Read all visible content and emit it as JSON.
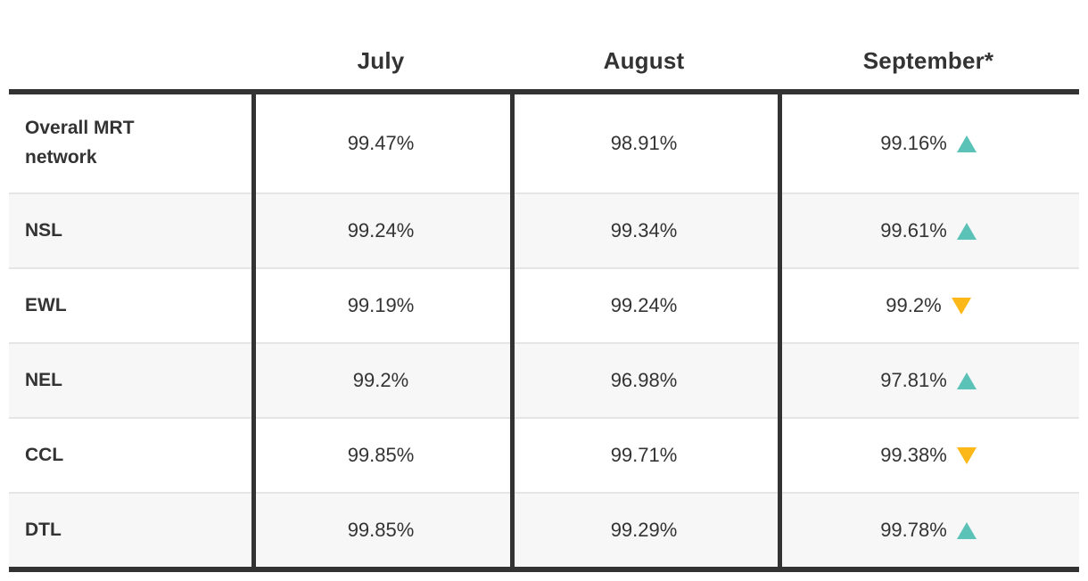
{
  "colors": {
    "text": "#333333",
    "rule": "#333333",
    "row_alt_background": "#f7f7f7",
    "row_divider": "#e5e5e5",
    "trend_up": "#5BC2B8",
    "trend_down": "#FBB818"
  },
  "table": {
    "column_headers": [
      "July",
      "August",
      "September*"
    ],
    "rows": [
      {
        "label": "Overall MRT network",
        "july": "99.47%",
        "august": "98.91%",
        "september": "99.16%",
        "trend": "up"
      },
      {
        "label": "NSL",
        "july": "99.24%",
        "august": "99.34%",
        "september": "99.61%",
        "trend": "up"
      },
      {
        "label": "EWL",
        "july": "99.19%",
        "august": "99.24%",
        "september": "99.2%",
        "trend": "down"
      },
      {
        "label": "NEL",
        "july": "99.2%",
        "august": "96.98%",
        "september": "97.81%",
        "trend": "up"
      },
      {
        "label": "CCL",
        "july": "99.85%",
        "august": "99.71%",
        "september": "99.38%",
        "trend": "down"
      },
      {
        "label": "DTL",
        "july": "99.85%",
        "august": "99.29%",
        "september": "99.78%",
        "trend": "up"
      }
    ]
  },
  "chart_data": {
    "type": "table",
    "categories": [
      "Overall MRT network",
      "NSL",
      "EWL",
      "NEL",
      "CCL",
      "DTL"
    ],
    "series": [
      {
        "name": "July",
        "values": [
          99.47,
          99.24,
          99.19,
          99.2,
          99.85,
          99.85
        ]
      },
      {
        "name": "August",
        "values": [
          98.91,
          99.34,
          99.24,
          96.98,
          99.71,
          99.29
        ]
      },
      {
        "name": "September*",
        "values": [
          99.16,
          99.61,
          99.2,
          97.81,
          99.38,
          99.78
        ]
      }
    ],
    "september_trend_vs_august": [
      "up",
      "up",
      "down",
      "up",
      "down",
      "up"
    ],
    "unit": "%"
  }
}
